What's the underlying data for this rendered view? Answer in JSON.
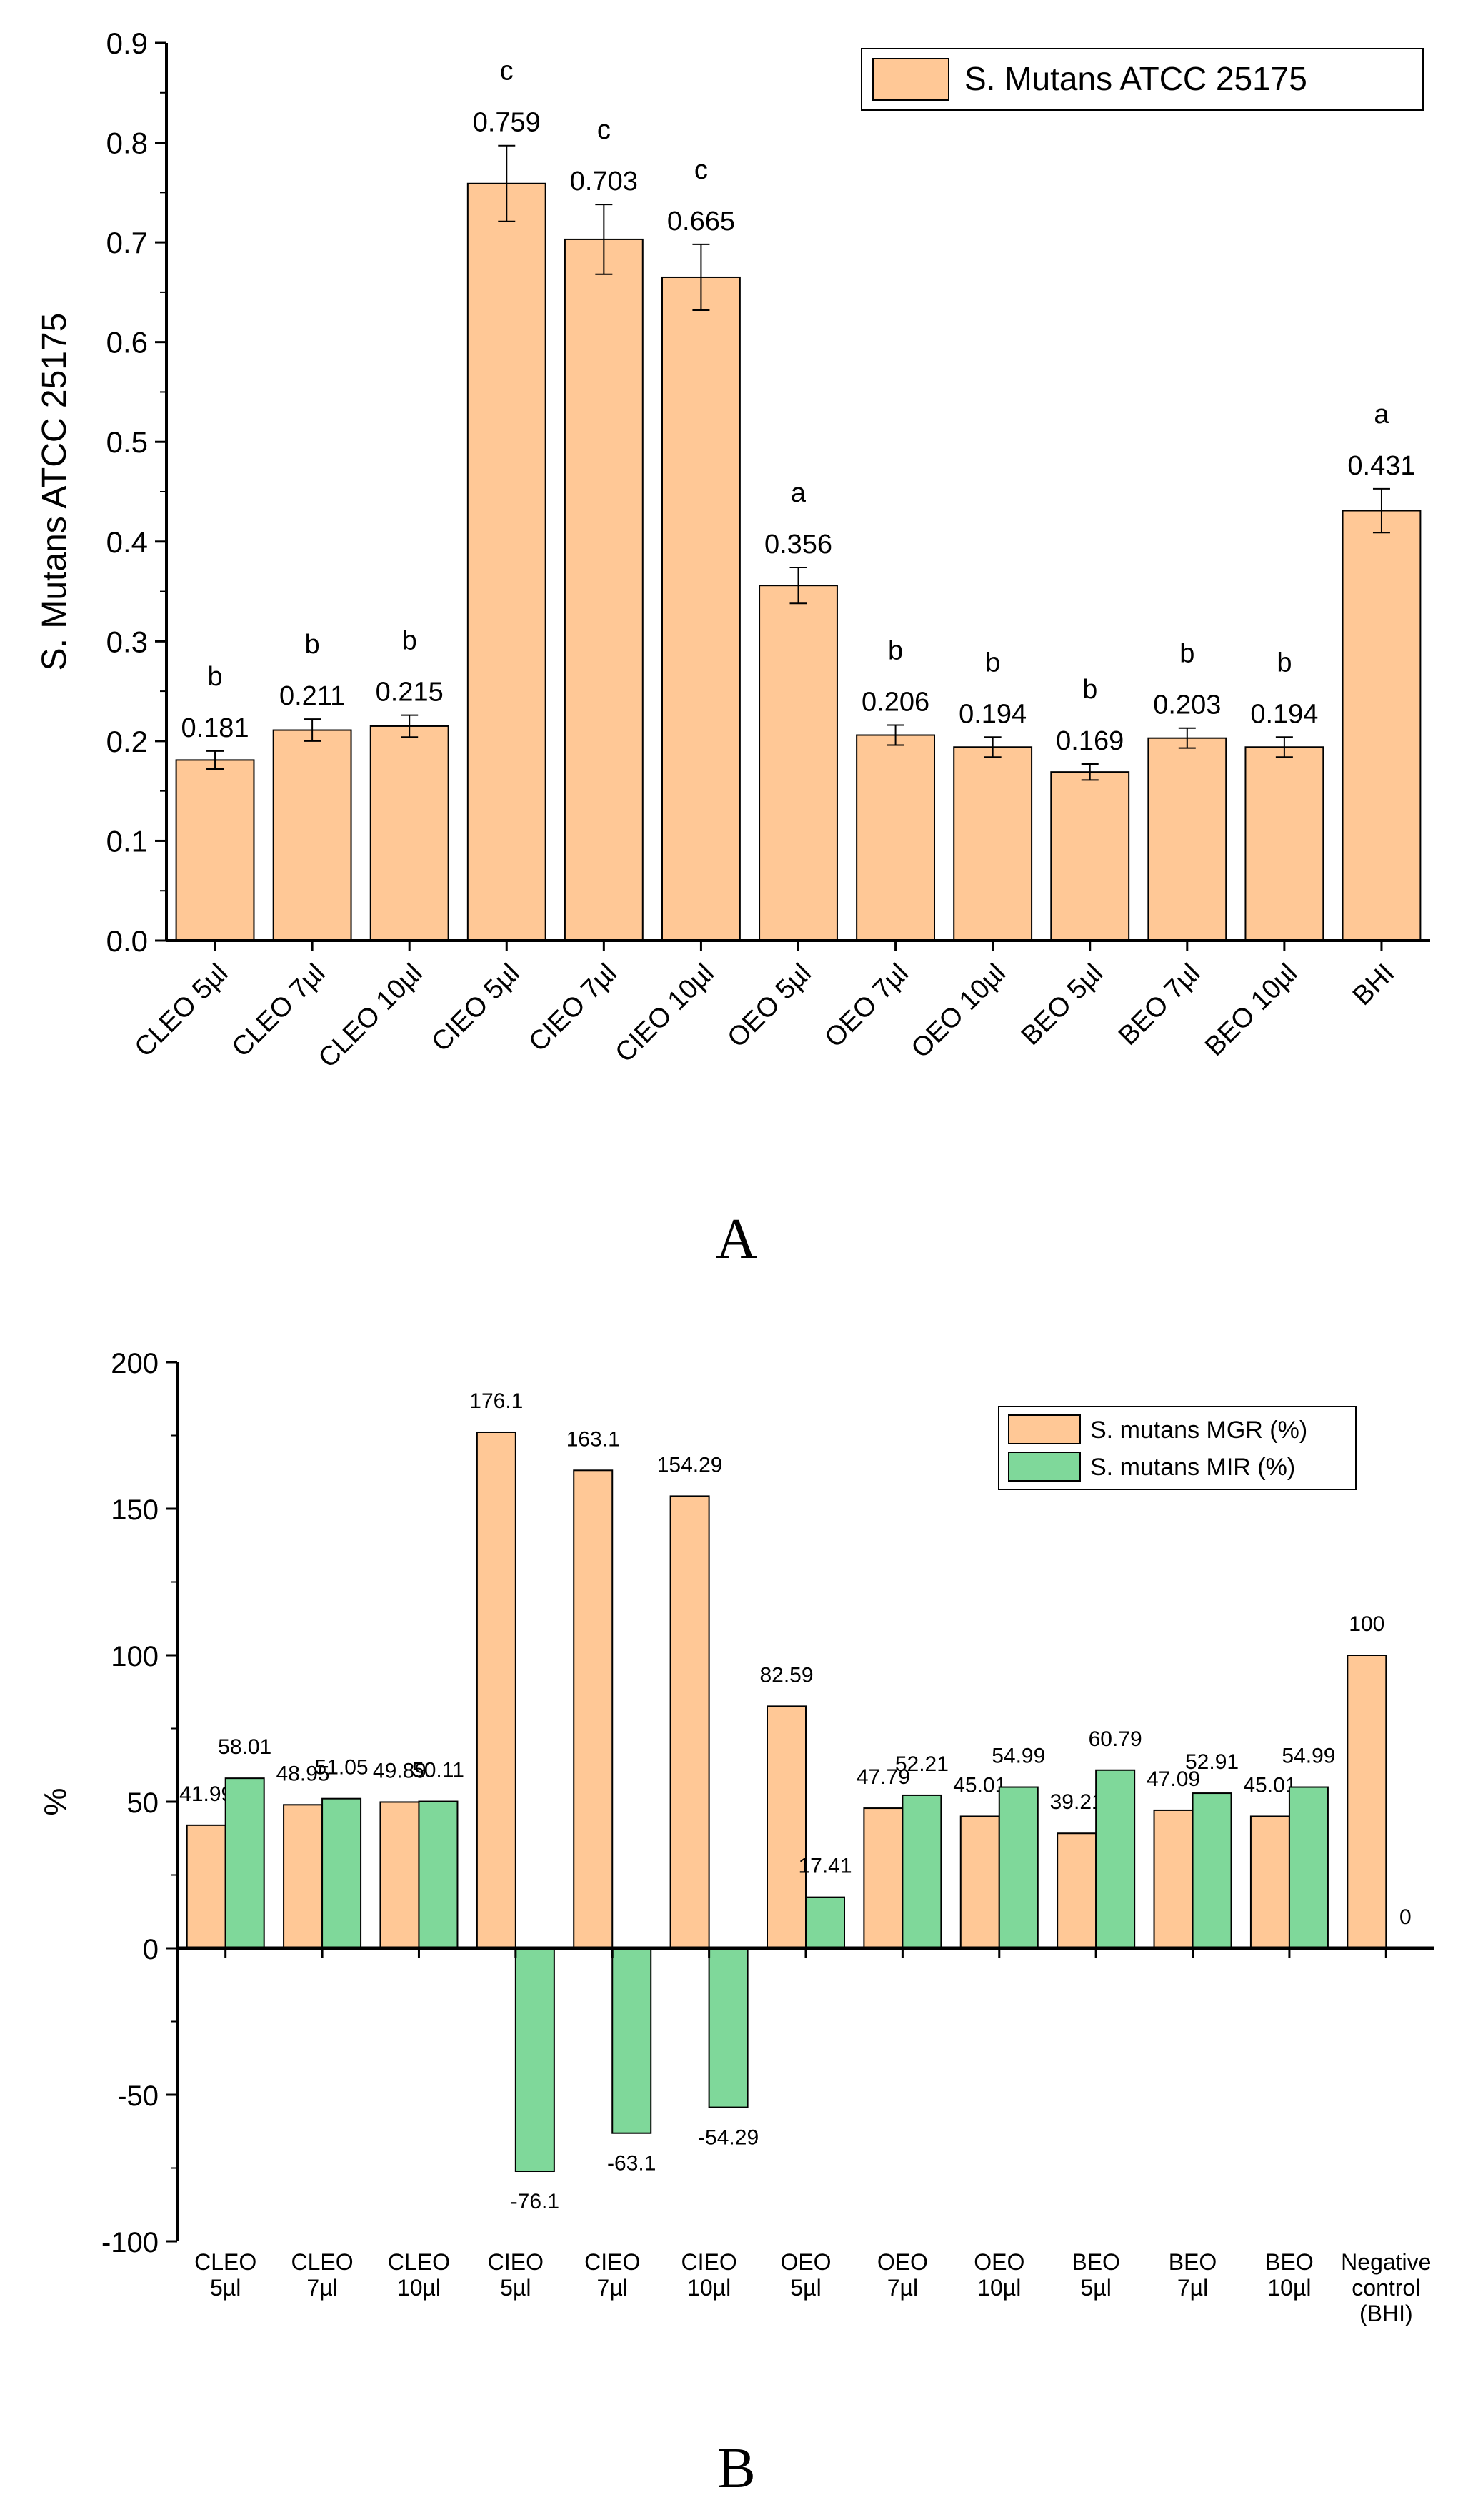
{
  "chart_data": [
    {
      "type": "bar",
      "panel_label": "A",
      "ylabel": "S. Mutans ATCC 25175",
      "xlabel": "",
      "ylim": [
        0,
        0.9
      ],
      "yticks": [
        "0.0",
        "0.1",
        "0.2",
        "0.3",
        "0.4",
        "0.5",
        "0.6",
        "0.7",
        "0.8",
        "0.9"
      ],
      "categories": [
        "CLEO 5µl",
        "CLEO 7µl",
        "CLEO 10µl",
        "CIEO 5µl",
        "CIEO 7µl",
        "CIEO 10µl",
        "OEO 5µl",
        "OEO 7µl",
        "OEO 10µl",
        "BEO 5µl",
        "BEO 7µl",
        "BEO 10µl",
        "BHI"
      ],
      "values": [
        0.181,
        0.211,
        0.215,
        0.759,
        0.703,
        0.665,
        0.356,
        0.206,
        0.194,
        0.169,
        0.203,
        0.194,
        0.431
      ],
      "value_labels": [
        "0.181",
        "0.211",
        "0.215",
        "0.759",
        "0.703",
        "0.665",
        "0.356",
        "0.206",
        "0.194",
        "0.169",
        "0.203",
        "0.194",
        "0.431"
      ],
      "errors": [
        0.009,
        0.011,
        0.011,
        0.038,
        0.035,
        0.033,
        0.018,
        0.01,
        0.01,
        0.008,
        0.01,
        0.01,
        0.022
      ],
      "significance": [
        "b",
        "b",
        "b",
        "c",
        "c",
        "c",
        "a",
        "b",
        "b",
        "b",
        "b",
        "b",
        "a"
      ],
      "legend": {
        "entries": [
          "S. Mutans ATCC 25175"
        ],
        "placement": "top-right"
      },
      "bar_color": "#FFC896"
    },
    {
      "type": "bar",
      "panel_label": "B",
      "ylabel": "%",
      "xlabel": "",
      "ylim": [
        -100,
        200
      ],
      "yticks": [
        "-100",
        "-50",
        "0",
        "50",
        "100",
        "150",
        "200"
      ],
      "categories": [
        [
          "CLEO",
          "5µl"
        ],
        [
          "CLEO",
          "7µl"
        ],
        [
          "CLEO",
          "10µl"
        ],
        [
          "CIEO",
          "5µl"
        ],
        [
          "CIEO",
          "7µl"
        ],
        [
          "CIEO",
          "10µl"
        ],
        [
          "OEO",
          "5µl"
        ],
        [
          "OEO",
          "7µl"
        ],
        [
          "OEO",
          "10µl"
        ],
        [
          "BEO",
          "5µl"
        ],
        [
          "BEO",
          "7µl"
        ],
        [
          "BEO",
          "10µl"
        ],
        [
          "Negative",
          "control",
          "(BHI)"
        ]
      ],
      "series": [
        {
          "name": "S. mutans MGR (%)",
          "color": "#FFC896",
          "values": [
            41.99,
            48.95,
            49.89,
            176.1,
            163.1,
            154.29,
            82.59,
            47.79,
            45.01,
            39.21,
            47.09,
            45.01,
            100
          ],
          "labels": [
            "41.99",
            "48.95",
            "49.89",
            "176.1",
            "163.1",
            "154.29",
            "82.59",
            "47.79",
            "45.01",
            "39.21",
            "47.09",
            "45.01",
            "100"
          ]
        },
        {
          "name": "S. mutans MIR (%)",
          "color": "#7FD89A",
          "values": [
            58.01,
            51.05,
            50.11,
            -76.1,
            -63.1,
            -54.29,
            17.41,
            52.21,
            54.99,
            60.79,
            52.91,
            54.99,
            0
          ],
          "labels": [
            "58.01",
            "51.05",
            "50.11",
            "-76.1",
            "-63.1",
            "-54.29",
            "17.41",
            "52.21",
            "54.99",
            "60.79",
            "52.91",
            "54.99",
            "0"
          ]
        }
      ],
      "legend": {
        "entries": [
          "S. mutans MGR (%)",
          "S. mutans MIR (%)"
        ],
        "placement": "top-right"
      }
    }
  ]
}
